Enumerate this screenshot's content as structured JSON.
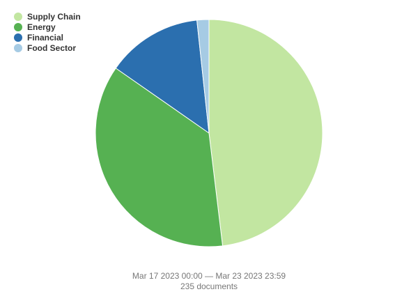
{
  "chart_data": {
    "type": "pie",
    "categories": [
      "Supply Chain",
      "Energy",
      "Financial",
      "Food Sector"
    ],
    "values": [
      113,
      86,
      32,
      4
    ],
    "colors": [
      "#c2e6a1",
      "#56b152",
      "#2b6faf",
      "#a6cbe4"
    ],
    "legend_position": "top-left",
    "start_angle_deg": 0,
    "direction": "clockwise"
  },
  "footer": {
    "date_range": "Mar 17 2023 00:00 — Mar 23 2023 23:59",
    "doc_count": "235 documents"
  }
}
